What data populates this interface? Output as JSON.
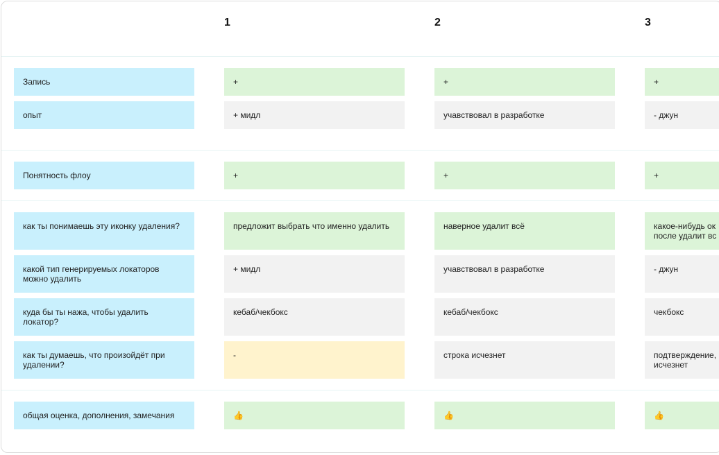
{
  "board": {
    "columns": [
      "1",
      "2",
      "3"
    ],
    "sections": [
      {
        "rows": [
          {
            "label": "Запись",
            "label_color": "#c9f0fd",
            "cells": [
              {
                "text": "+",
                "color": "#dcf4d8"
              },
              {
                "text": "+",
                "color": "#dcf4d8"
              },
              {
                "text": "+",
                "color": "#dcf4d8"
              }
            ]
          },
          {
            "label": "опыт",
            "label_color": "#c9f0fd",
            "cells": [
              {
                "text": "+ мидл",
                "color": "#f2f2f2"
              },
              {
                "text": "учавствовал в разработке",
                "color": "#f2f2f2"
              },
              {
                "text": "- джун",
                "color": "#f2f2f2"
              }
            ]
          }
        ]
      },
      {
        "rows": [
          {
            "label": "Понятность флоу",
            "label_color": "#c9f0fd",
            "cells": [
              {
                "text": "+",
                "color": "#dcf4d8"
              },
              {
                "text": "+",
                "color": "#dcf4d8"
              },
              {
                "text": "+",
                "color": "#dcf4d8"
              }
            ]
          }
        ]
      },
      {
        "rows": [
          {
            "label": "как ты понимаешь эту иконку удаления?",
            "label_color": "#c9f0fd",
            "cells": [
              {
                "text": "предложит выбрать что именно удалить",
                "color": "#dcf4d8"
              },
              {
                "text": "наверное удалит всё",
                "color": "#dcf4d8"
              },
              {
                "text": "какое-нибудь ок\nпосле удалит вс",
                "color": "#dcf4d8"
              }
            ]
          },
          {
            "label": "какой тип генерируемых локаторов\nможно удалить",
            "label_color": "#c9f0fd",
            "cells": [
              {
                "text": "+ мидл",
                "color": "#f2f2f2"
              },
              {
                "text": "учавствовал в разработке",
                "color": "#f2f2f2"
              },
              {
                "text": "- джун",
                "color": "#f2f2f2"
              }
            ]
          },
          {
            "label": "куда бы ты нажа, чтобы удалить\nлокатор?",
            "label_color": "#c9f0fd",
            "cells": [
              {
                "text": "кебаб/чекбокс",
                "color": "#f2f2f2"
              },
              {
                "text": "кебаб/чекбокс",
                "color": "#f2f2f2"
              },
              {
                "text": "чекбокс",
                "color": "#f2f2f2"
              }
            ]
          },
          {
            "label": "как ты думаешь, что произойдёт при\nудалении?",
            "label_color": "#c9f0fd",
            "cells": [
              {
                "text": "-",
                "color": "#fff3cd"
              },
              {
                "text": "строка исчезнет",
                "color": "#f2f2f2"
              },
              {
                "text": "подтверждение,\nисчезнет",
                "color": "#f2f2f2"
              }
            ]
          }
        ]
      },
      {
        "rows": [
          {
            "label": "общая оценка, дополнения, замечания",
            "label_color": "#c9f0fd",
            "cells": [
              {
                "text": "👍",
                "color": "#dcf4d8"
              },
              {
                "text": "👍",
                "color": "#dcf4d8"
              },
              {
                "text": "👍",
                "color": "#dcf4d8"
              }
            ]
          }
        ]
      }
    ]
  }
}
